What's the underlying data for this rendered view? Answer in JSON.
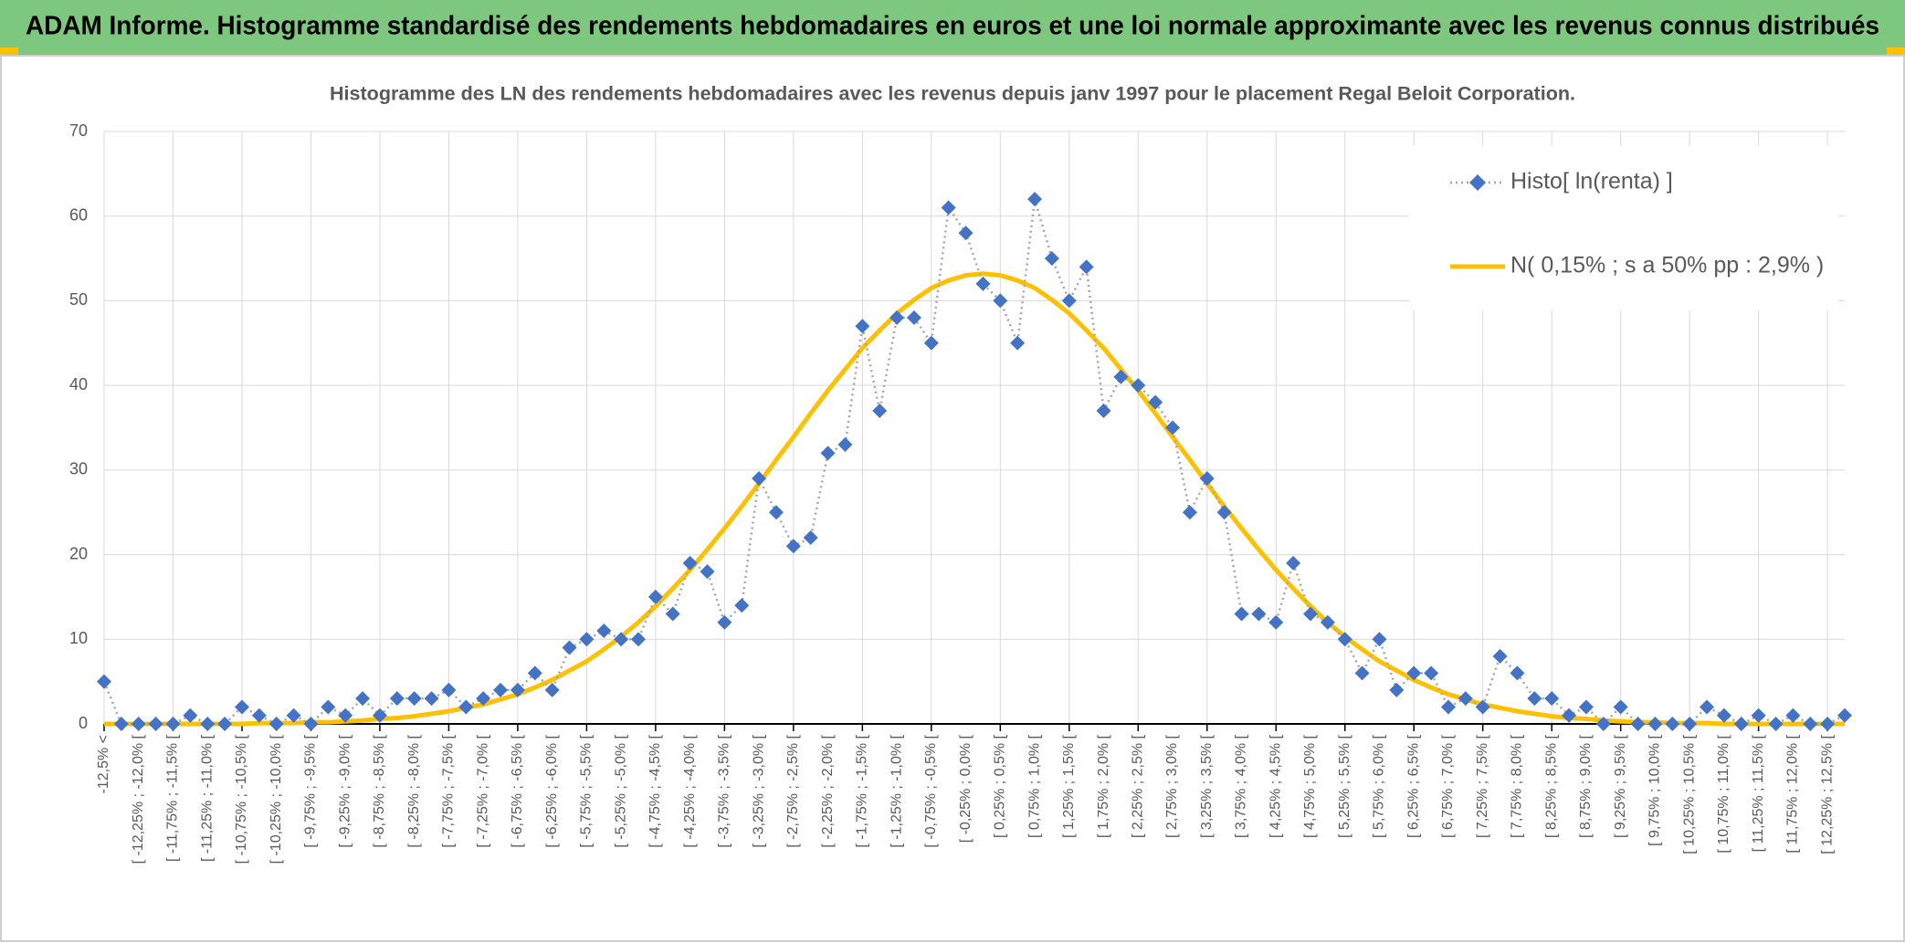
{
  "page_title": "ADAM Informe. Histogramme standardisé des rendements hebdomadaires en euros et une loi normale approximante avec les revenus connus distribués",
  "chart_data": {
    "type": "line",
    "title": "Histogramme des LN des rendements hebdomadaires avec les revenus depuis janv 1997 pour le placement Regal Beloit Corporation.",
    "categories": [
      "-12,5% <",
      null,
      "[ -12,25% ; -12,0% [",
      null,
      "[ -11,75% ; -11,5% [",
      null,
      "[ -11,25% ; -11,0% [",
      null,
      "[ -10,75% ; -10,5% [",
      null,
      "[ -10,25% ; -10,0% [",
      null,
      "[ -9,75% ; -9,5% [",
      null,
      "[ -9,25% ; -9,0% [",
      null,
      "[ -8,75% ; -8,5% [",
      null,
      "[ -8,25% ; -8,0% [",
      null,
      "[ -7,75% ; -7,5% [",
      null,
      "[ -7,25% ; -7,0% [",
      null,
      "[ -6,75% ; -6,5% [",
      null,
      "[ -6,25% ; -6,0% [",
      null,
      "[ -5,75% ; -5,5% [",
      null,
      "[ -5,25% ; -5,0% [",
      null,
      "[ -4,75% ; -4,5% [",
      null,
      "[ -4,25% ; -4,0% [",
      null,
      "[ -3,75% ; -3,5% [",
      null,
      "[ -3,25% ; -3,0% [",
      null,
      "[ -2,75% ; -2,5% [",
      null,
      "[ -2,25% ; -2,0% [",
      null,
      "[ -1,75% ; -1,5% [",
      null,
      "[ -1,25% ; -1,0% [",
      null,
      "[ -0,75% ; -0,5% [",
      null,
      "[ -0,25% ; 0,0% [",
      null,
      "[ 0,25% ; 0,5% [",
      null,
      "[ 0,75% ; 1,0% [",
      null,
      "[ 1,25% ; 1,5% [",
      null,
      "[ 1,75% ; 2,0% [",
      null,
      "[ 2,25% ; 2,5% [",
      null,
      "[ 2,75% ; 3,0% [",
      null,
      "[ 3,25% ; 3,5% [",
      null,
      "[ 3,75% ; 4,0% [",
      null,
      "[ 4,25% ; 4,5% [",
      null,
      "[ 4,75% ; 5,0% [",
      null,
      "[ 5,25% ; 5,5% [",
      null,
      "[ 5,75% ; 6,0% [",
      null,
      "[ 6,25% ; 6,5% [",
      null,
      "[ 6,75% ; 7,0% [",
      null,
      "[ 7,25% ; 7,5% [",
      null,
      "[ 7,75% ; 8,0% [",
      null,
      "[ 8,25% ; 8,5% [",
      null,
      "[ 8,75% ; 9,0% [",
      null,
      "[ 9,25% ; 9,5% [",
      null,
      "[ 9,75% ; 10,0% [",
      null,
      "[ 10,25% ; 10,5% [",
      null,
      "[ 10,75% ; 11,0% [",
      null,
      "[ 11,25% ; 11,5% [",
      null,
      "[ 11,75% ; 12,0% [",
      null,
      "[ 12,25% ; 12,5% [",
      null
    ],
    "series": [
      {
        "name": "Histo[ ln(renta) ]",
        "color": "#4472c4",
        "line_color": "#a5a5a5",
        "marker": "diamond",
        "dashed": true,
        "values": [
          5,
          0,
          0,
          0,
          0,
          1,
          0,
          0,
          2,
          1,
          0,
          1,
          0,
          2,
          1,
          3,
          1,
          3,
          3,
          3,
          4,
          2,
          3,
          4,
          4,
          6,
          4,
          9,
          10,
          11,
          10,
          10,
          15,
          13,
          19,
          18,
          12,
          14,
          29,
          25,
          21,
          22,
          32,
          33,
          47,
          37,
          48,
          48,
          45,
          61,
          58,
          52,
          50,
          45,
          62,
          55,
          50,
          54,
          37,
          41,
          40,
          38,
          35,
          25,
          29,
          25,
          13,
          13,
          12,
          19,
          13,
          12,
          10,
          6,
          10,
          4,
          6,
          6,
          2,
          3,
          2,
          8,
          6,
          3,
          3,
          1,
          2,
          0,
          2,
          0,
          0,
          0,
          0,
          2,
          1,
          0,
          1,
          0,
          1,
          0,
          0,
          1
        ]
      },
      {
        "name": "N( 0,15% ; s a 50% pp : 2,9% )",
        "color": "#ffc000",
        "line_color": "#ffc000",
        "marker": null,
        "dashed": false,
        "values": [
          0,
          0,
          0,
          0,
          0,
          0,
          0,
          0,
          0,
          0.1,
          0.1,
          0.1,
          0.2,
          0.2,
          0.3,
          0.4,
          0.6,
          0.7,
          0.9,
          1.2,
          1.5,
          1.9,
          2.3,
          2.9,
          3.5,
          4.3,
          5.2,
          6.3,
          7.4,
          8.8,
          10.3,
          12.0,
          13.9,
          16.0,
          18.2,
          20.6,
          23.1,
          25.7,
          28.4,
          31.2,
          33.9,
          36.7,
          39.4,
          41.9,
          44.4,
          46.5,
          48.5,
          50.1,
          51.5,
          52.4,
          53.0,
          53.2,
          53.0,
          52.4,
          51.5,
          50.1,
          48.5,
          46.5,
          44.4,
          41.9,
          39.4,
          36.7,
          33.9,
          31.2,
          28.4,
          25.7,
          23.1,
          20.6,
          18.2,
          16.0,
          13.9,
          12.0,
          10.3,
          8.8,
          7.4,
          6.3,
          5.2,
          4.3,
          3.5,
          2.9,
          2.3,
          1.9,
          1.5,
          1.2,
          0.9,
          0.7,
          0.6,
          0.4,
          0.3,
          0.2,
          0.2,
          0.1,
          0.1,
          0.1,
          0,
          0,
          0,
          0,
          0,
          0,
          0,
          0
        ]
      }
    ],
    "ylim": [
      0,
      70
    ],
    "yticks": [
      0,
      10,
      20,
      30,
      40,
      50,
      60,
      70
    ],
    "grid": true,
    "legend": "top-right"
  }
}
